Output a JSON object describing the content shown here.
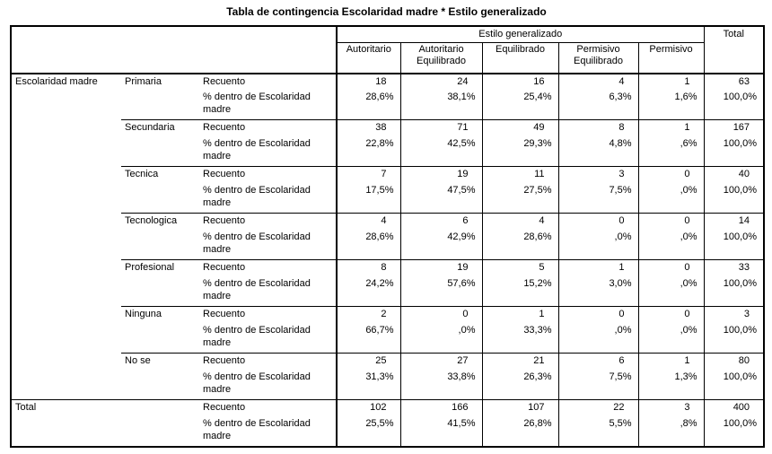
{
  "title": "Tabla de contingencia Escolaridad madre * Estilo generalizado",
  "table": {
    "col_group_header": "Estilo generalizado",
    "columns": [
      "Autoritario",
      "Autoritario Equilibrado",
      "Equilibrado",
      "Permisivo Equilibrado",
      "Permisivo"
    ],
    "total_column_label": "Total",
    "row_dimension_label": "Escolaridad madre",
    "count_label": "Recuento",
    "percent_label": "% dentro de Escolaridad madre",
    "total_row_label": "Total",
    "groups": [
      {
        "category": "Primaria",
        "counts": [
          "18",
          "24",
          "16",
          "4",
          "1",
          "63"
        ],
        "percents": [
          "28,6%",
          "38,1%",
          "25,4%",
          "6,3%",
          "1,6%",
          "100,0%"
        ]
      },
      {
        "category": "Secundaria",
        "counts": [
          "38",
          "71",
          "49",
          "8",
          "1",
          "167"
        ],
        "percents": [
          "22,8%",
          "42,5%",
          "29,3%",
          "4,8%",
          ",6%",
          "100,0%"
        ]
      },
      {
        "category": "Tecnica",
        "counts": [
          "7",
          "19",
          "11",
          "3",
          "0",
          "40"
        ],
        "percents": [
          "17,5%",
          "47,5%",
          "27,5%",
          "7,5%",
          ",0%",
          "100,0%"
        ]
      },
      {
        "category": "Tecnologica",
        "counts": [
          "4",
          "6",
          "4",
          "0",
          "0",
          "14"
        ],
        "percents": [
          "28,6%",
          "42,9%",
          "28,6%",
          ",0%",
          ",0%",
          "100,0%"
        ]
      },
      {
        "category": "Profesional",
        "counts": [
          "8",
          "19",
          "5",
          "1",
          "0",
          "33"
        ],
        "percents": [
          "24,2%",
          "57,6%",
          "15,2%",
          "3,0%",
          ",0%",
          "100,0%"
        ]
      },
      {
        "category": "Ninguna",
        "counts": [
          "2",
          "0",
          "1",
          "0",
          "0",
          "3"
        ],
        "percents": [
          "66,7%",
          ",0%",
          "33,3%",
          ",0%",
          ",0%",
          "100,0%"
        ]
      },
      {
        "category": "No se",
        "counts": [
          "25",
          "27",
          "21",
          "6",
          "1",
          "80"
        ],
        "percents": [
          "31,3%",
          "33,8%",
          "26,3%",
          "7,5%",
          "1,3%",
          "100,0%"
        ]
      }
    ],
    "total_row": {
      "counts": [
        "102",
        "166",
        "107",
        "22",
        "3",
        "400"
      ],
      "percents": [
        "25,5%",
        "41,5%",
        "26,8%",
        "5,5%",
        ",8%",
        "100,0%"
      ]
    }
  },
  "chart_data": {
    "type": "table",
    "title": "Tabla de contingencia Escolaridad madre * Estilo generalizado",
    "row_variable": "Escolaridad madre",
    "column_variable": "Estilo generalizado",
    "columns": [
      "Autoritario",
      "Autoritario Equilibrado",
      "Equilibrado",
      "Permisivo Equilibrado",
      "Permisivo",
      "Total"
    ],
    "rows": [
      {
        "category": "Primaria",
        "counts": [
          18,
          24,
          16,
          4,
          1,
          63
        ],
        "row_percents": [
          28.6,
          38.1,
          25.4,
          6.3,
          1.6,
          100.0
        ]
      },
      {
        "category": "Secundaria",
        "counts": [
          38,
          71,
          49,
          8,
          1,
          167
        ],
        "row_percents": [
          22.8,
          42.5,
          29.3,
          4.8,
          0.6,
          100.0
        ]
      },
      {
        "category": "Tecnica",
        "counts": [
          7,
          19,
          11,
          3,
          0,
          40
        ],
        "row_percents": [
          17.5,
          47.5,
          27.5,
          7.5,
          0.0,
          100.0
        ]
      },
      {
        "category": "Tecnologica",
        "counts": [
          4,
          6,
          4,
          0,
          0,
          14
        ],
        "row_percents": [
          28.6,
          42.9,
          28.6,
          0.0,
          0.0,
          100.0
        ]
      },
      {
        "category": "Profesional",
        "counts": [
          8,
          19,
          5,
          1,
          0,
          33
        ],
        "row_percents": [
          24.2,
          57.6,
          15.2,
          3.0,
          0.0,
          100.0
        ]
      },
      {
        "category": "Ninguna",
        "counts": [
          2,
          0,
          1,
          0,
          0,
          3
        ],
        "row_percents": [
          66.7,
          0.0,
          33.3,
          0.0,
          0.0,
          100.0
        ]
      },
      {
        "category": "No se",
        "counts": [
          25,
          27,
          21,
          6,
          1,
          80
        ],
        "row_percents": [
          31.3,
          33.8,
          26.3,
          7.5,
          1.3,
          100.0
        ]
      },
      {
        "category": "Total",
        "counts": [
          102,
          166,
          107,
          22,
          3,
          400
        ],
        "row_percents": [
          25.5,
          41.5,
          26.8,
          5.5,
          0.8,
          100.0
        ]
      }
    ]
  }
}
